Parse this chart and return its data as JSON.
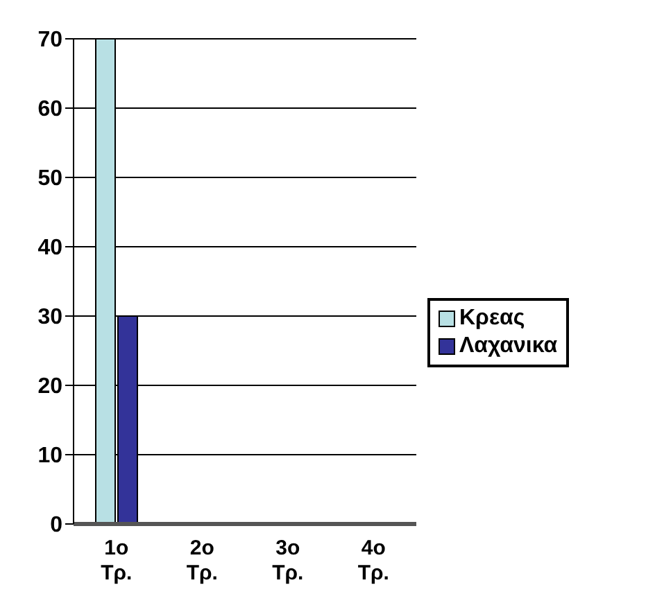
{
  "chart_data": {
    "type": "bar",
    "categories": [
      "1o Τρ.",
      "2o Τρ.",
      "3o Τρ.",
      "4o Τρ."
    ],
    "series": [
      {
        "name": "Κρεας",
        "color": "#b8e0e4",
        "values": [
          70,
          0,
          0,
          0
        ]
      },
      {
        "name": "Λαχανικα",
        "color": "#333399",
        "values": [
          30,
          0,
          0,
          0
        ]
      }
    ],
    "ylim": [
      0,
      70
    ],
    "yticks": [
      0,
      10,
      20,
      30,
      40,
      50,
      60,
      70
    ],
    "grid": "y",
    "legend": "right"
  }
}
